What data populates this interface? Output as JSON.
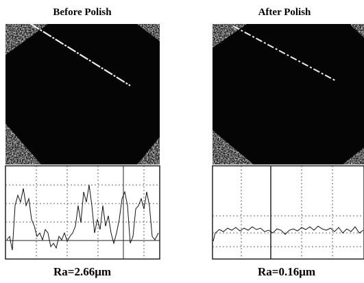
{
  "panels": [
    {
      "title": "Before Polish",
      "caption": "Ra=2.66μm"
    },
    {
      "title": "After Polish",
      "caption": "Ra=0.16μm"
    }
  ]
}
